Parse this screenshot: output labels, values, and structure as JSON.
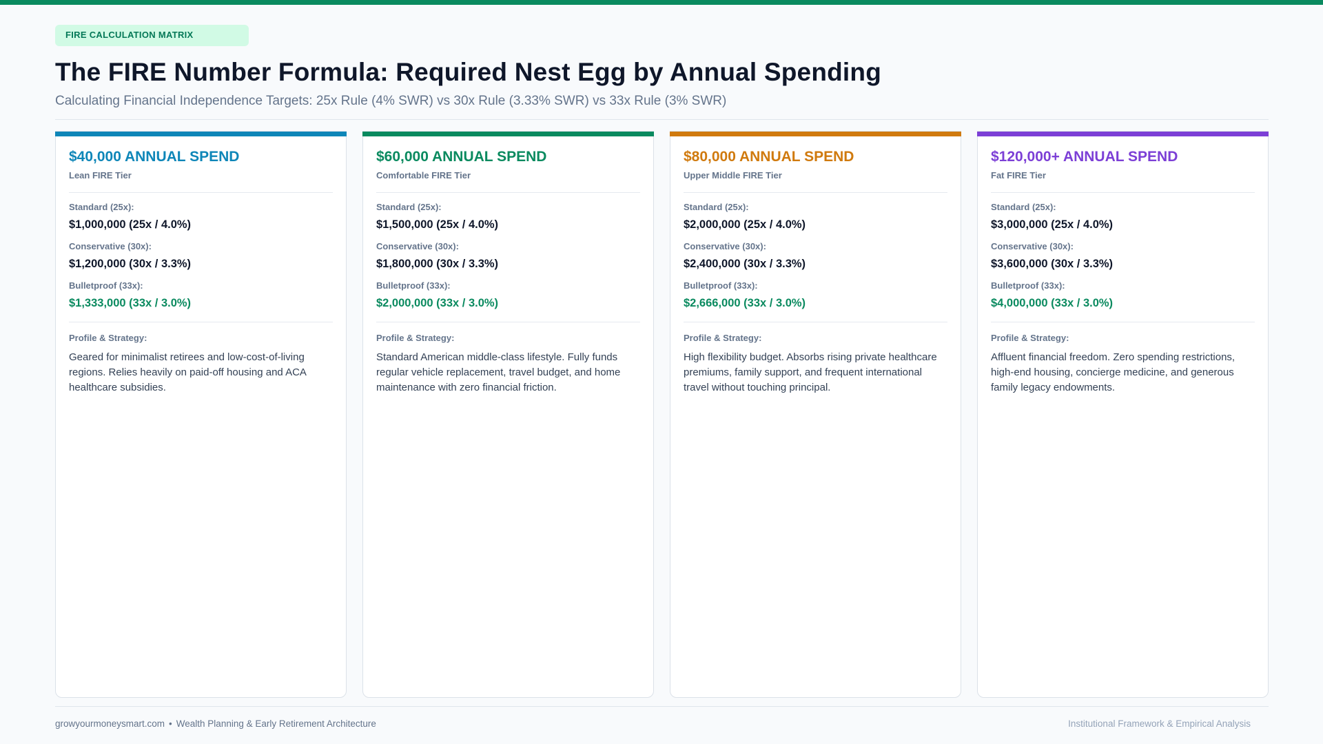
{
  "header": {
    "badge": "FIRE CALCULATION MATRIX",
    "title": "The FIRE Number Formula: Required Nest Egg by Annual Spending",
    "subtitle": "Calculating Financial Independence Targets: 25x Rule (4% SWR) vs 30x Rule (3.33% SWR) vs 33x Rule (3% SWR)"
  },
  "labels": {
    "standard": "Standard (25x):",
    "conservative": "Conservative (30x):",
    "bulletproof": "Bulletproof (33x):",
    "profile": "Profile & Strategy:"
  },
  "cards": [
    {
      "title": "$40,000 ANNUAL SPEND",
      "tier": "Lean FIRE Tier",
      "accent_color": "#0e86b8",
      "standard": "$1,000,000 (25x / 4.0%)",
      "conservative": "$1,200,000 (30x / 3.3%)",
      "bulletproof": "$1,333,000 (33x / 3.0%)",
      "profile": "Geared for minimalist retirees and low-cost-of-living regions. Relies heavily on paid-off housing and ACA healthcare subsidies."
    },
    {
      "title": "$60,000 ANNUAL SPEND",
      "tier": "Comfortable FIRE Tier",
      "accent_color": "#0a8a5f",
      "standard": "$1,500,000 (25x / 4.0%)",
      "conservative": "$1,800,000 (30x / 3.3%)",
      "bulletproof": "$2,000,000 (33x / 3.0%)",
      "profile": "Standard American middle-class lifestyle. Fully funds regular vehicle replacement, travel budget, and home maintenance with zero financial friction."
    },
    {
      "title": "$80,000 ANNUAL SPEND",
      "tier": "Upper Middle FIRE Tier",
      "accent_color": "#d07a0e",
      "standard": "$2,000,000 (25x / 4.0%)",
      "conservative": "$2,400,000 (30x / 3.3%)",
      "bulletproof": "$2,666,000 (33x / 3.0%)",
      "profile": "High flexibility budget. Absorbs rising private healthcare premiums, family support, and frequent international travel without touching principal."
    },
    {
      "title": "$120,000+ ANNUAL SPEND",
      "tier": "Fat FIRE Tier",
      "accent_color": "#7c3fd6",
      "standard": "$3,000,000 (25x / 4.0%)",
      "conservative": "$3,600,000 (30x / 3.3%)",
      "bulletproof": "$4,000,000 (33x / 3.0%)",
      "profile": "Affluent financial freedom. Zero spending restrictions, high-end housing, concierge medicine, and generous family legacy endowments."
    }
  ],
  "footer": {
    "site": "growyourmoneysmart.com",
    "separator": "•",
    "tagline": "Wealth Planning & Early Retirement Architecture",
    "right": "Institutional Framework & Empirical Analysis"
  }
}
